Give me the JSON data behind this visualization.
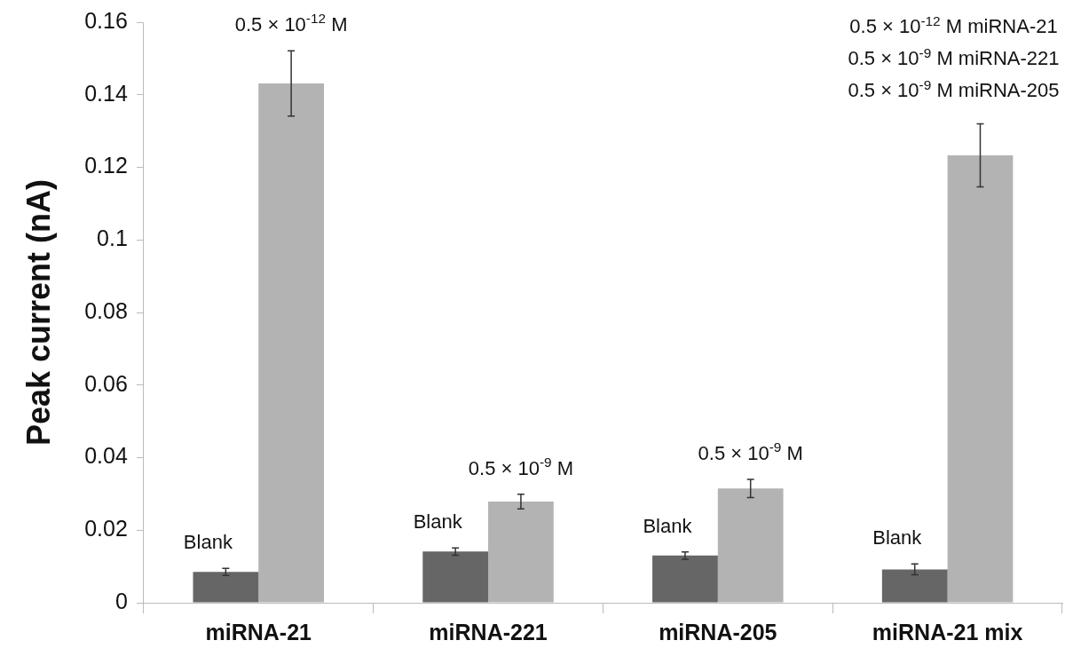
{
  "chart_data": {
    "type": "bar",
    "ylabel": "Peak current (nA)",
    "categories": [
      "miRNA-21",
      "miRNA-221",
      "miRNA-205",
      "miRNA-21 mix"
    ],
    "series": [
      {
        "color": "#666666",
        "values": [
          0.0085,
          0.0141,
          0.013,
          0.0092
        ],
        "errors": [
          0.001,
          0.001,
          0.001,
          0.0015
        ]
      },
      {
        "color": "#b3b3b3",
        "values": [
          0.1431,
          0.0279,
          0.0315,
          0.1233
        ],
        "errors": [
          0.009,
          0.002,
          0.0025,
          0.0087
        ]
      }
    ],
    "ylim": [
      0,
      0.16
    ],
    "yticks": [
      0,
      0.02,
      0.04,
      0.06,
      0.08,
      0.1,
      0.12,
      0.14,
      0.16
    ],
    "grid": false,
    "legend": false,
    "annotations": [
      "Blank",
      "0.5 × 10$^{-12}$ M",
      "Blank",
      "0.5 × 10$^{-9}$ M",
      "Blank",
      "0.5 × 10$^{-9}$ M",
      "Blank",
      "0.5 × 10$^{-12}$ M miRNA-21\n0.5 × 10$^{-9}$ M miRNA-221\n0.5 × 10$^{-9}$ M miRNA-205"
    ]
  }
}
